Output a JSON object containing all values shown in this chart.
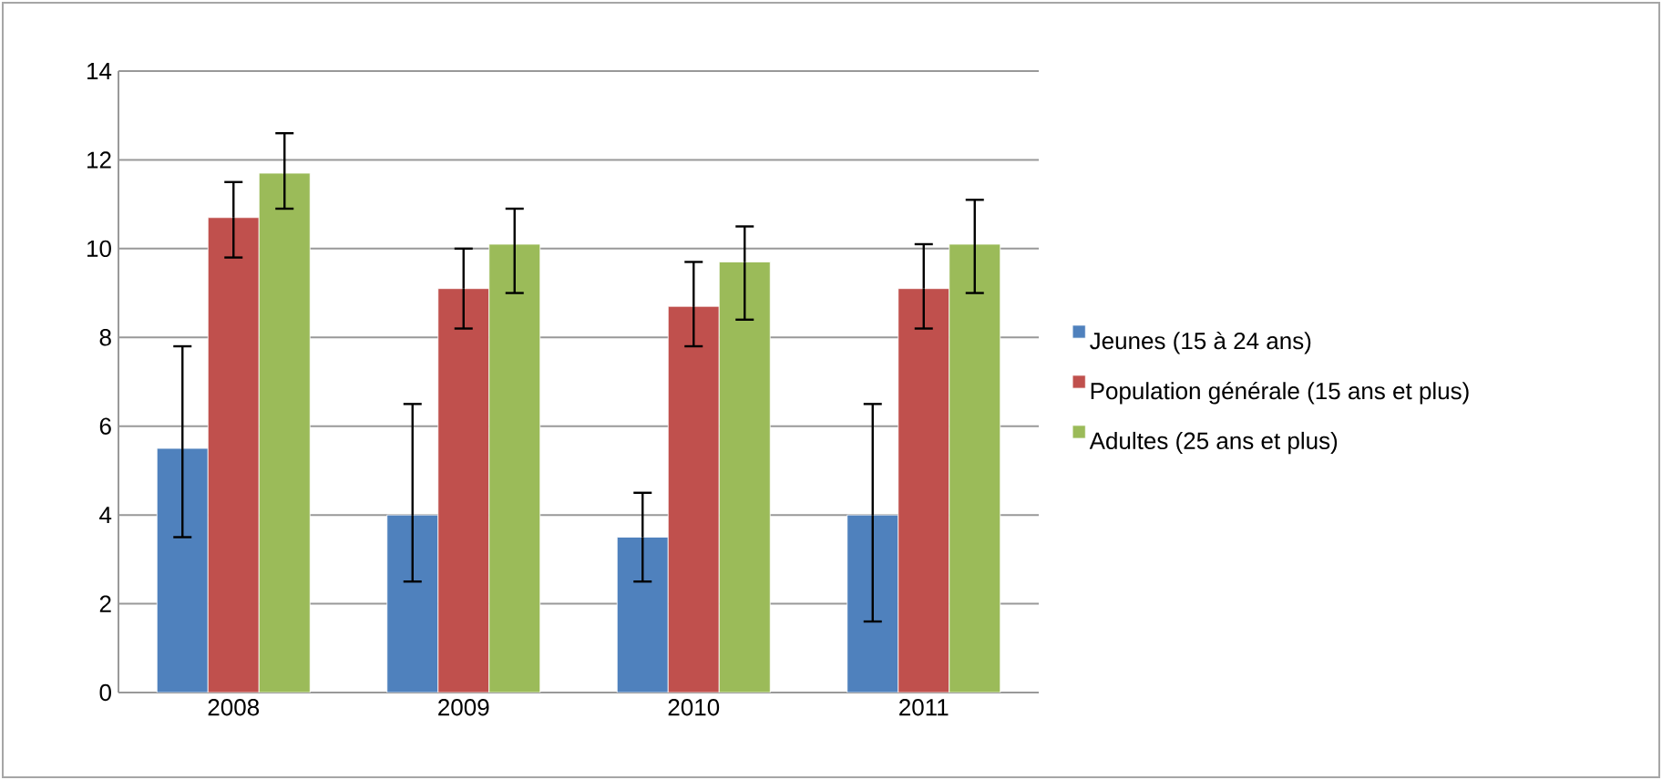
{
  "chart_data": {
    "type": "bar",
    "categories": [
      "2008",
      "2009",
      "2010",
      "2011"
    ],
    "series": [
      {
        "name": "Jeunes (15 à 24 ans)",
        "color": "#4f81bd",
        "values": [
          5.5,
          4.0,
          3.5,
          4.0
        ],
        "errors": [
          [
            3.5,
            7.8
          ],
          [
            2.5,
            6.5
          ],
          [
            2.5,
            4.5
          ],
          [
            1.6,
            6.5
          ]
        ]
      },
      {
        "name": "Population générale (15 ans et plus)",
        "color": "#c0504d",
        "values": [
          10.7,
          9.1,
          8.7,
          9.1
        ],
        "errors": [
          [
            9.8,
            11.5
          ],
          [
            8.2,
            10.0
          ],
          [
            7.8,
            9.7
          ],
          [
            8.2,
            10.1
          ]
        ]
      },
      {
        "name": "Adultes (25 ans et plus)",
        "color": "#9bbb59",
        "values": [
          11.7,
          10.1,
          9.7,
          10.1
        ],
        "errors": [
          [
            10.9,
            12.6
          ],
          [
            9.0,
            10.9
          ],
          [
            8.4,
            10.5
          ],
          [
            9.0,
            11.1
          ]
        ]
      }
    ],
    "ylim": [
      0,
      14
    ],
    "yticks": [
      0,
      2,
      4,
      6,
      8,
      10,
      12,
      14
    ],
    "grid": "y",
    "legend": "right"
  }
}
